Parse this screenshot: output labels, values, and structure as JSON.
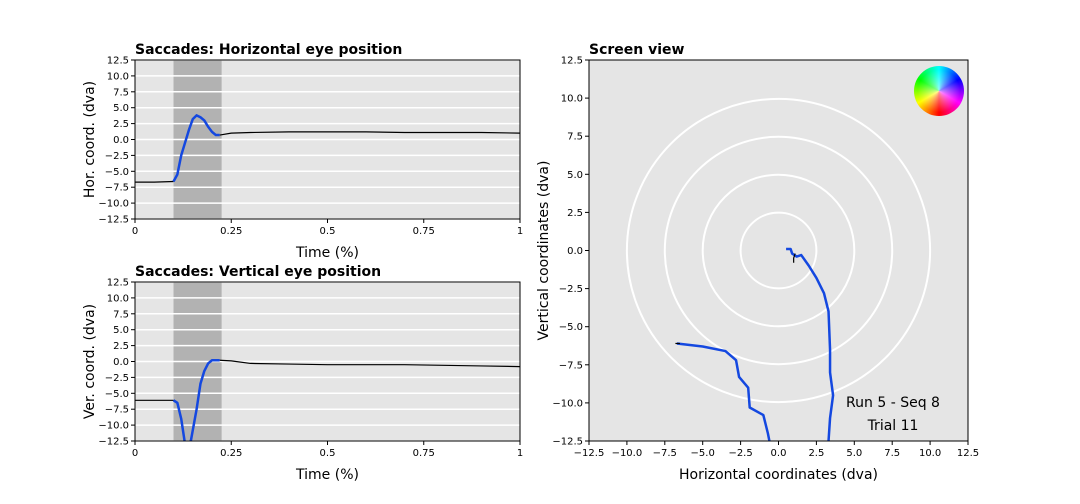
{
  "chart_data": [
    {
      "type": "line",
      "title": "Saccades: Horizontal eye position",
      "xlabel": "Time (%)",
      "ylabel": "Hor. coord. (dva)",
      "xlim": [
        0,
        1
      ],
      "ylim": [
        -12.5,
        12.5
      ],
      "xticks": [
        0,
        0.25,
        0.5,
        0.75,
        1
      ],
      "yticks": [
        {
          "value": -12.5,
          "label": "−12.5"
        },
        {
          "value": -10,
          "label": "−10.0"
        },
        {
          "value": -7.5,
          "label": "−7.5"
        },
        {
          "value": -5,
          "label": "−5.0"
        },
        {
          "value": -2.5,
          "label": "−2.5"
        },
        {
          "value": 0,
          "label": "0.0"
        },
        {
          "value": 2.5,
          "label": "2.5"
        },
        {
          "value": 5,
          "label": "5.0"
        },
        {
          "value": 7.5,
          "label": "7.5"
        },
        {
          "value": 10,
          "label": "10.0"
        },
        {
          "value": 12.5,
          "label": "12.5"
        }
      ],
      "grid": true,
      "shade": [
        0.1,
        0.225
      ],
      "x": [
        0,
        0.05,
        0.1,
        0.11,
        0.12,
        0.13,
        0.14,
        0.15,
        0.16,
        0.17,
        0.18,
        0.19,
        0.2,
        0.21,
        0.22,
        0.25,
        0.3,
        0.4,
        0.5,
        0.6,
        0.7,
        0.8,
        0.9,
        1
      ],
      "series": [
        {
          "color": "#000000",
          "values": [
            -6.7,
            -6.7,
            -6.6,
            null,
            null,
            null,
            null,
            null,
            null,
            null,
            null,
            null,
            null,
            null,
            0.7,
            1.0,
            1.1,
            1.2,
            1.2,
            1.2,
            1.1,
            1.1,
            1.1,
            1.0
          ]
        },
        {
          "color": "#1448e0",
          "values": [
            null,
            null,
            -6.6,
            -5.5,
            -2.5,
            -0.5,
            1.5,
            3.2,
            3.8,
            3.5,
            3.0,
            2.0,
            1.2,
            0.7,
            0.7,
            null,
            null,
            null,
            null,
            null,
            null,
            null,
            null,
            null
          ]
        }
      ]
    },
    {
      "type": "line",
      "title": "Saccades: Vertical eye position",
      "xlabel": "Time (%)",
      "ylabel": "Ver. coord. (dva)",
      "xlim": [
        0,
        1
      ],
      "ylim": [
        -12.5,
        12.5
      ],
      "xticks": [
        0,
        0.25,
        0.5,
        0.75,
        1
      ],
      "yticks": [
        {
          "value": -12.5,
          "label": "−12.5"
        },
        {
          "value": -10,
          "label": "−10.0"
        },
        {
          "value": -7.5,
          "label": "−7.5"
        },
        {
          "value": -5,
          "label": "−5.0"
        },
        {
          "value": -2.5,
          "label": "−2.5"
        },
        {
          "value": 0,
          "label": "0.0"
        },
        {
          "value": 2.5,
          "label": "2.5"
        },
        {
          "value": 5,
          "label": "5.0"
        },
        {
          "value": 7.5,
          "label": "7.5"
        },
        {
          "value": 10,
          "label": "10.0"
        },
        {
          "value": 12.5,
          "label": "12.5"
        }
      ],
      "grid": true,
      "shade": [
        0.1,
        0.225
      ],
      "x": [
        0,
        0.05,
        0.1,
        0.11,
        0.12,
        0.13,
        0.145,
        0.16,
        0.17,
        0.18,
        0.19,
        0.2,
        0.22,
        0.25,
        0.3,
        0.4,
        0.5,
        0.6,
        0.7,
        0.8,
        0.9,
        1
      ],
      "series": [
        {
          "color": "#000000",
          "values": [
            -6.1,
            -6.1,
            -6.1,
            null,
            null,
            null,
            null,
            null,
            null,
            null,
            null,
            null,
            0.2,
            0.1,
            -0.3,
            -0.4,
            -0.5,
            -0.5,
            -0.5,
            -0.6,
            -0.7,
            -0.8
          ]
        },
        {
          "color": "#1448e0",
          "values": [
            null,
            null,
            -6.1,
            -6.5,
            -9.0,
            -13.0,
            -12.5,
            -7.5,
            -3.5,
            -1.5,
            -0.3,
            0.2,
            0.2,
            null,
            null,
            null,
            null,
            null,
            null,
            null,
            null,
            null
          ]
        }
      ]
    },
    {
      "type": "trajectory",
      "title": "Screen view",
      "xlabel": "Horizontal coordinates (dva)",
      "ylabel": "Vertical coordinates (dva)",
      "xlim": [
        -12.5,
        12.5
      ],
      "ylim": [
        -12.5,
        12.5
      ],
      "xticks": [
        {
          "value": -12.5,
          "label": "−12.5"
        },
        {
          "value": -10,
          "label": "−10.0"
        },
        {
          "value": -7.5,
          "label": "−7.5"
        },
        {
          "value": -5,
          "label": "−5.0"
        },
        {
          "value": -2.5,
          "label": "−2.5"
        },
        {
          "value": 0,
          "label": "0.0"
        },
        {
          "value": 2.5,
          "label": "2.5"
        },
        {
          "value": 5,
          "label": "5.0"
        },
        {
          "value": 7.5,
          "label": "7.5"
        },
        {
          "value": 10,
          "label": "10.0"
        },
        {
          "value": 12.5,
          "label": "12.5"
        }
      ],
      "yticks": [
        {
          "value": -12.5,
          "label": "−12.5"
        },
        {
          "value": -10,
          "label": "−10.0"
        },
        {
          "value": -7.5,
          "label": "−7.5"
        },
        {
          "value": -5,
          "label": "−5.0"
        },
        {
          "value": -2.5,
          "label": "−2.5"
        },
        {
          "value": 0,
          "label": "0.0"
        },
        {
          "value": 2.5,
          "label": "2.5"
        },
        {
          "value": 5,
          "label": "5.0"
        },
        {
          "value": 7.5,
          "label": "7.5"
        },
        {
          "value": 10,
          "label": "10.0"
        },
        {
          "value": 12.5,
          "label": "12.5"
        }
      ],
      "rings": [
        2.5,
        5,
        7.5,
        10
      ],
      "annotations": [
        "Run 5 - Seq 8",
        "Trial 11"
      ],
      "series": [
        {
          "color": "#1448e0",
          "x": [
            0.5,
            0.8,
            0.9,
            1.2,
            1.5,
            2.0,
            2.5,
            3.0,
            3.3,
            3.4,
            3.4,
            3.6,
            3.4,
            3.3
          ],
          "values": [
            0.1,
            0.1,
            -0.2,
            -0.4,
            -0.3,
            -1.0,
            -1.8,
            -2.8,
            -4.0,
            -6.5,
            -8.0,
            -9.5,
            -11.0,
            -12.5
          ]
        },
        {
          "color": "#1448e0",
          "x": [
            -6.7,
            -5.0,
            -3.5,
            -2.8,
            -2.6,
            -2.0,
            -1.9,
            -1.0,
            -0.7,
            -0.6
          ],
          "values": [
            -6.1,
            -6.3,
            -6.6,
            -7.2,
            -8.3,
            -9.0,
            -10.3,
            -10.8,
            -12.0,
            -12.5
          ]
        },
        {
          "color": "#000000",
          "x": [
            1.1,
            1.0,
            1.0
          ],
          "values": [
            -0.2,
            -0.5,
            -0.8
          ]
        },
        {
          "color": "#000000",
          "x": [
            -6.8,
            -6.5
          ],
          "values": [
            -6.1,
            -6.1
          ]
        }
      ]
    }
  ]
}
